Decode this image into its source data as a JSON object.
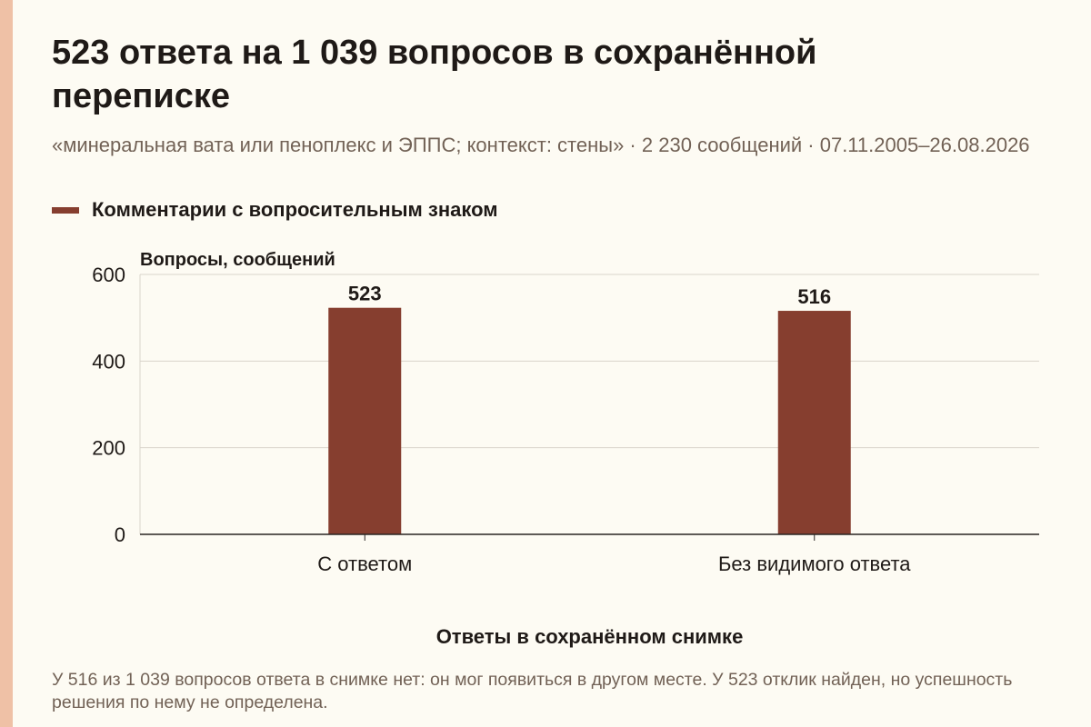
{
  "title": "523 ответа на 1 039 вопросов в сохранённой переписке",
  "subtitle": "«минеральная вата или пеноплекс и ЭППС; контекст: стены» · 2 230 сообщений · 07.11.2005–26.08.2026",
  "footnote": "У 516 из 1 039 вопросов ответа в снимке нет: он мог появиться в другом месте. У 523 отклик найден, но успешность решения по нему не определена.",
  "colors": {
    "bar": "#863e2f",
    "background": "#fdfbf3",
    "stripe": "#efc1a6",
    "grid": "#d9d4cb",
    "axis": "#2a2523",
    "muted_text": "#726256"
  },
  "chart_data": {
    "type": "bar",
    "categories": [
      "С ответом",
      "Без видимого ответа"
    ],
    "series": [
      {
        "name": "Комментарии с вопросительным знаком",
        "values": [
          523,
          516
        ]
      }
    ],
    "data_labels": [
      "523",
      "516"
    ],
    "xlabel": "Ответы в сохранённом снимке",
    "ylabel": "Вопросы, сообщений",
    "ylim": [
      0,
      600
    ],
    "yticks": [
      0,
      200,
      400,
      600
    ],
    "grid": true,
    "legend_position": "top-left"
  }
}
